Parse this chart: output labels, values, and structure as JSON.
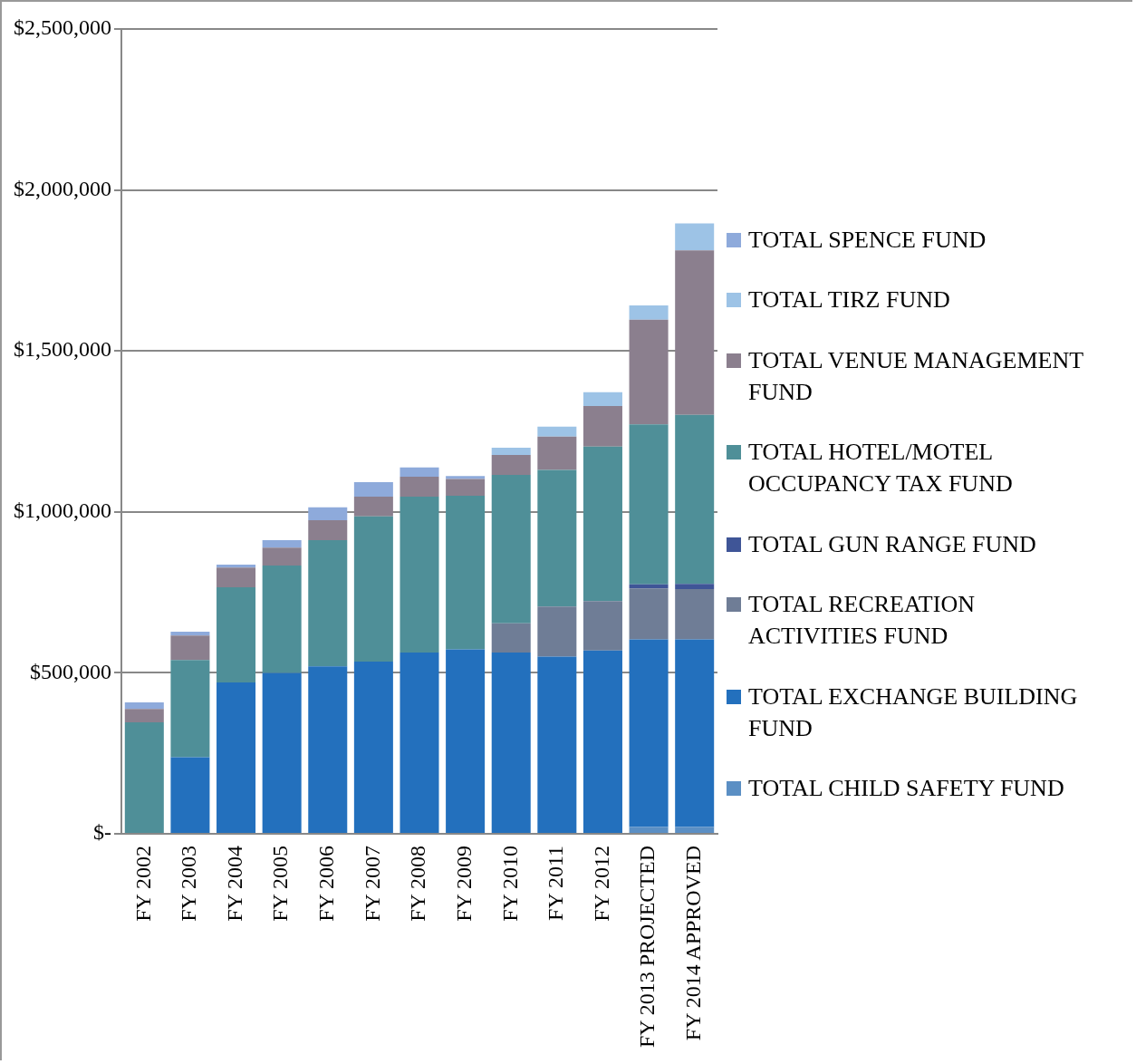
{
  "chart_data": {
    "type": "bar",
    "stacked": true,
    "categories": [
      "FY 2002",
      "FY 2003",
      "FY 2004",
      "FY 2005",
      "FY 2006",
      "FY 2007",
      "FY 2008",
      "FY 2009",
      "FY 2010",
      "FY 2011",
      "FY 2012",
      "FY 2013 PROJECTED",
      "FY 2014 APPROVED"
    ],
    "series": [
      {
        "name": "TOTAL CHILD SAFETY FUND",
        "color": "#5b8fc4",
        "values": [
          0,
          0,
          0,
          0,
          0,
          0,
          0,
          0,
          0,
          0,
          0,
          21000,
          21000
        ]
      },
      {
        "name": "TOTAL EXCHANGE BUILDING FUND",
        "color": "#2370bd",
        "values": [
          0,
          238000,
          470000,
          500000,
          520000,
          535000,
          563000,
          573000,
          563000,
          550000,
          569000,
          583000,
          583000
        ]
      },
      {
        "name": "TOTAL RECREATION ACTIVITIES FUND",
        "color": "#6f7d96",
        "values": [
          0,
          0,
          0,
          0,
          0,
          0,
          0,
          0,
          91000,
          156000,
          154000,
          158000,
          156000
        ]
      },
      {
        "name": "TOTAL GUN RANGE FUND",
        "color": "#3f5597",
        "values": [
          0,
          0,
          0,
          0,
          0,
          0,
          0,
          0,
          0,
          0,
          0,
          13000,
          16000
        ]
      },
      {
        "name": "TOTAL HOTEL/MOTEL OCCUPANCY TAX FUND",
        "color": "#4f8f98",
        "values": [
          346000,
          302000,
          296000,
          333000,
          392000,
          451000,
          484000,
          477000,
          461000,
          424000,
          480000,
          497000,
          525000
        ]
      },
      {
        "name": "TOTAL VENUE MANAGEMENT FUND",
        "color": "#8b7f8e",
        "values": [
          42000,
          76000,
          61000,
          56000,
          62000,
          61000,
          62000,
          52000,
          62000,
          104000,
          126000,
          325000,
          511000
        ]
      },
      {
        "name": "TOTAL TIRZ FUND",
        "color": "#9dc3e6",
        "values": [
          0,
          0,
          0,
          0,
          0,
          0,
          0,
          0,
          22000,
          31000,
          43000,
          44000,
          84000
        ]
      },
      {
        "name": "TOTAL SPENCE FUND",
        "color": "#8eaadb",
        "values": [
          20000,
          12000,
          9000,
          23000,
          40000,
          45000,
          29000,
          9000,
          0,
          0,
          0,
          0,
          0
        ]
      }
    ],
    "ylim": [
      0,
      2500000
    ],
    "yticks": [
      {
        "value": 0,
        "label": "$-"
      },
      {
        "value": 500000,
        "label": "$500,000"
      },
      {
        "value": 1000000,
        "label": "$1,000,000"
      },
      {
        "value": 1500000,
        "label": "$1,500,000"
      },
      {
        "value": 2000000,
        "label": "$2,000,000"
      },
      {
        "value": 2500000,
        "label": "$2,500,000"
      }
    ],
    "grid": "y",
    "legend": "right"
  }
}
